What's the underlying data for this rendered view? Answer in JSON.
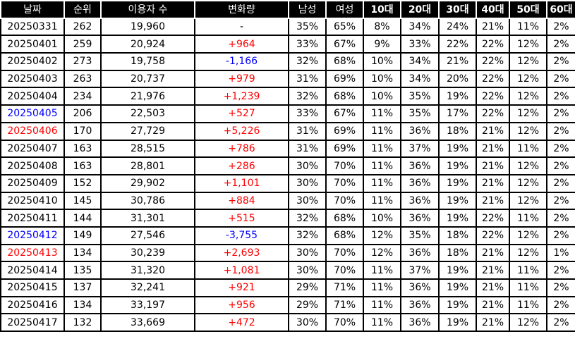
{
  "headers": [
    "날짜",
    "순위",
    "이용자 수",
    "변화량",
    "남성",
    "여성",
    "10대",
    "20대",
    "30대",
    "40대",
    "50대",
    "60대"
  ],
  "rows": [
    {
      "date": "20250331",
      "day": "",
      "rank": "262",
      "users": "19,960",
      "change": "-",
      "change_type": "none",
      "male": "35%",
      "female": "65%",
      "a10": "8%",
      "a20": "34%",
      "a30": "24%",
      "a40": "21%",
      "a50": "11%",
      "a60": "2%"
    },
    {
      "date": "20250401",
      "day": "",
      "rank": "259",
      "users": "20,924",
      "change": "+964",
      "change_type": "pos",
      "male": "33%",
      "female": "67%",
      "a10": "9%",
      "a20": "33%",
      "a30": "22%",
      "a40": "22%",
      "a50": "12%",
      "a60": "2%"
    },
    {
      "date": "20250402",
      "day": "",
      "rank": "273",
      "users": "19,758",
      "change": "-1,166",
      "change_type": "neg",
      "male": "32%",
      "female": "68%",
      "a10": "10%",
      "a20": "34%",
      "a30": "21%",
      "a40": "22%",
      "a50": "12%",
      "a60": "2%"
    },
    {
      "date": "20250403",
      "day": "",
      "rank": "263",
      "users": "20,737",
      "change": "+979",
      "change_type": "pos",
      "male": "31%",
      "female": "69%",
      "a10": "10%",
      "a20": "34%",
      "a30": "20%",
      "a40": "22%",
      "a50": "12%",
      "a60": "2%"
    },
    {
      "date": "20250404",
      "day": "",
      "rank": "234",
      "users": "21,976",
      "change": "+1,239",
      "change_type": "pos",
      "male": "32%",
      "female": "68%",
      "a10": "10%",
      "a20": "35%",
      "a30": "19%",
      "a40": "22%",
      "a50": "12%",
      "a60": "2%"
    },
    {
      "date": "20250405",
      "day": "sat",
      "rank": "206",
      "users": "22,503",
      "change": "+527",
      "change_type": "pos",
      "male": "33%",
      "female": "67%",
      "a10": "11%",
      "a20": "35%",
      "a30": "17%",
      "a40": "22%",
      "a50": "12%",
      "a60": "2%"
    },
    {
      "date": "20250406",
      "day": "sun",
      "rank": "170",
      "users": "27,729",
      "change": "+5,226",
      "change_type": "pos",
      "male": "31%",
      "female": "69%",
      "a10": "11%",
      "a20": "36%",
      "a30": "18%",
      "a40": "21%",
      "a50": "12%",
      "a60": "2%"
    },
    {
      "date": "20250407",
      "day": "",
      "rank": "163",
      "users": "28,515",
      "change": "+786",
      "change_type": "pos",
      "male": "31%",
      "female": "69%",
      "a10": "11%",
      "a20": "37%",
      "a30": "19%",
      "a40": "21%",
      "a50": "11%",
      "a60": "2%"
    },
    {
      "date": "20250408",
      "day": "",
      "rank": "163",
      "users": "28,801",
      "change": "+286",
      "change_type": "pos",
      "male": "30%",
      "female": "70%",
      "a10": "11%",
      "a20": "36%",
      "a30": "19%",
      "a40": "21%",
      "a50": "12%",
      "a60": "2%"
    },
    {
      "date": "20250409",
      "day": "",
      "rank": "152",
      "users": "29,902",
      "change": "+1,101",
      "change_type": "pos",
      "male": "30%",
      "female": "70%",
      "a10": "11%",
      "a20": "36%",
      "a30": "19%",
      "a40": "21%",
      "a50": "12%",
      "a60": "2%"
    },
    {
      "date": "20250410",
      "day": "",
      "rank": "145",
      "users": "30,786",
      "change": "+884",
      "change_type": "pos",
      "male": "30%",
      "female": "70%",
      "a10": "11%",
      "a20": "36%",
      "a30": "19%",
      "a40": "21%",
      "a50": "12%",
      "a60": "2%"
    },
    {
      "date": "20250411",
      "day": "",
      "rank": "144",
      "users": "31,301",
      "change": "+515",
      "change_type": "pos",
      "male": "32%",
      "female": "68%",
      "a10": "10%",
      "a20": "36%",
      "a30": "19%",
      "a40": "22%",
      "a50": "11%",
      "a60": "2%"
    },
    {
      "date": "20250412",
      "day": "sat",
      "rank": "149",
      "users": "27,546",
      "change": "-3,755",
      "change_type": "neg",
      "male": "32%",
      "female": "68%",
      "a10": "12%",
      "a20": "35%",
      "a30": "18%",
      "a40": "22%",
      "a50": "12%",
      "a60": "2%"
    },
    {
      "date": "20250413",
      "day": "sun",
      "rank": "134",
      "users": "30,239",
      "change": "+2,693",
      "change_type": "pos",
      "male": "30%",
      "female": "70%",
      "a10": "12%",
      "a20": "36%",
      "a30": "18%",
      "a40": "21%",
      "a50": "12%",
      "a60": "1%"
    },
    {
      "date": "20250414",
      "day": "",
      "rank": "135",
      "users": "31,320",
      "change": "+1,081",
      "change_type": "pos",
      "male": "30%",
      "female": "70%",
      "a10": "11%",
      "a20": "37%",
      "a30": "19%",
      "a40": "21%",
      "a50": "11%",
      "a60": "2%"
    },
    {
      "date": "20250415",
      "day": "",
      "rank": "137",
      "users": "32,241",
      "change": "+921",
      "change_type": "pos",
      "male": "29%",
      "female": "71%",
      "a10": "11%",
      "a20": "36%",
      "a30": "19%",
      "a40": "21%",
      "a50": "11%",
      "a60": "2%"
    },
    {
      "date": "20250416",
      "day": "",
      "rank": "134",
      "users": "33,197",
      "change": "+956",
      "change_type": "pos",
      "male": "29%",
      "female": "71%",
      "a10": "11%",
      "a20": "36%",
      "a30": "19%",
      "a40": "21%",
      "a50": "11%",
      "a60": "2%"
    },
    {
      "date": "20250417",
      "day": "",
      "rank": "132",
      "users": "33,669",
      "change": "+472",
      "change_type": "pos",
      "male": "30%",
      "female": "70%",
      "a10": "11%",
      "a20": "36%",
      "a30": "19%",
      "a40": "21%",
      "a50": "12%",
      "a60": "2%"
    }
  ],
  "colors": {
    "header_bg": "#000000",
    "header_text": "#ffffff",
    "positive": "#ff0000",
    "negative": "#0000ff",
    "saturday": "#0000ff",
    "sunday": "#ff0000"
  }
}
